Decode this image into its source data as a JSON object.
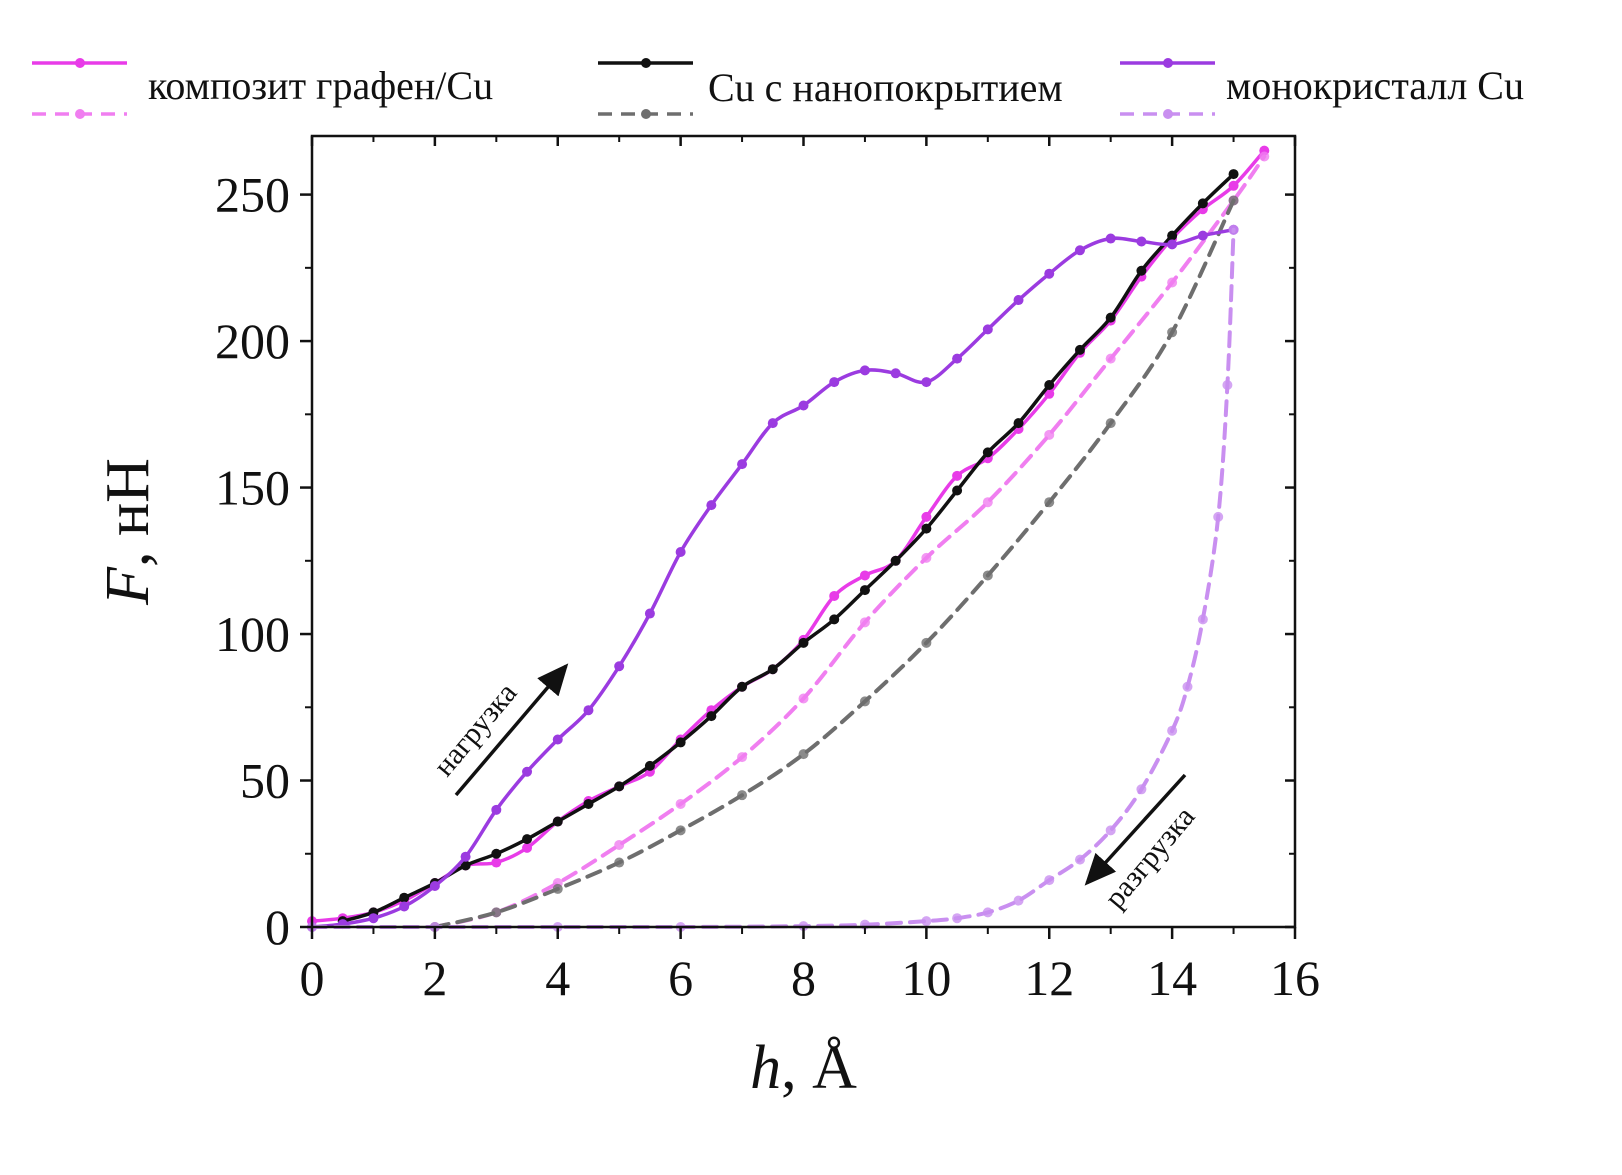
{
  "chart_data": {
    "type": "line",
    "xlabel": {
      "var": "h",
      "rest": ", Å"
    },
    "ylabel": {
      "var": "F",
      "rest": ", нН"
    },
    "xlim": [
      0,
      16
    ],
    "ylim": [
      0,
      270
    ],
    "xticks": [
      0,
      2,
      4,
      6,
      8,
      10,
      12,
      14,
      16
    ],
    "yticks": [
      0,
      50,
      100,
      150,
      200,
      250
    ],
    "grid": false,
    "legend_position": "top",
    "legend": [
      {
        "label": "композит графен/Cu",
        "color": "#e83be8"
      },
      {
        "label": "Cu с нанопокрытием",
        "color": "#111111"
      },
      {
        "label": "монокристалл Cu",
        "color": "#9b3be0"
      }
    ],
    "annotations": [
      {
        "text": "нагрузка"
      },
      {
        "text": "разгрузка"
      }
    ],
    "series": [
      {
        "name": "композит графен/Cu",
        "phase": "loading",
        "style": "solid",
        "color": "#e83be8",
        "x": [
          0,
          0.5,
          1,
          1.5,
          2,
          2.5,
          3,
          3.5,
          4,
          4.5,
          5,
          5.5,
          6,
          6.5,
          7,
          7.5,
          8,
          8.5,
          9,
          9.5,
          10,
          10.5,
          11,
          11.5,
          12,
          12.5,
          13,
          13.5,
          14,
          14.5,
          15,
          15.5
        ],
        "y": [
          2,
          3,
          5,
          9,
          15,
          21,
          22,
          27,
          36,
          43,
          48,
          53,
          64,
          74,
          82,
          88,
          98,
          113,
          120,
          125,
          140,
          154,
          160,
          170,
          182,
          196,
          207,
          222,
          235,
          245,
          253,
          265
        ]
      },
      {
        "name": "композит графен/Cu",
        "phase": "unloading",
        "style": "dashed",
        "color": "#f07ef0",
        "x": [
          2,
          3,
          4,
          5,
          6,
          7,
          8,
          9,
          10,
          11,
          12,
          13,
          14,
          15,
          15.5
        ],
        "y": [
          0,
          5,
          15,
          28,
          42,
          58,
          78,
          104,
          126,
          145,
          168,
          194,
          220,
          248,
          263
        ]
      },
      {
        "name": "Cu с нанопокрытием",
        "phase": "loading",
        "style": "solid",
        "color": "#111111",
        "x": [
          0.5,
          1,
          1.5,
          2,
          2.5,
          3,
          3.5,
          4,
          4.5,
          5,
          5.5,
          6,
          6.5,
          7,
          7.5,
          8,
          8.5,
          9,
          9.5,
          10,
          10.5,
          11,
          11.5,
          12,
          12.5,
          13,
          13.5,
          14,
          14.5,
          15
        ],
        "y": [
          2,
          5,
          10,
          15,
          21,
          25,
          30,
          36,
          42,
          48,
          55,
          63,
          72,
          82,
          88,
          97,
          105,
          115,
          125,
          136,
          149,
          162,
          172,
          185,
          197,
          208,
          224,
          236,
          247,
          257
        ]
      },
      {
        "name": "Cu с нанопокрытием",
        "phase": "unloading",
        "style": "dashed",
        "color": "#6e6e6e",
        "x": [
          2,
          3,
          4,
          5,
          6,
          7,
          8,
          9,
          10,
          11,
          12,
          13,
          14,
          15
        ],
        "y": [
          0,
          5,
          13,
          22,
          33,
          45,
          59,
          77,
          97,
          120,
          145,
          172,
          203,
          248
        ]
      },
      {
        "name": "монокристалл Cu",
        "phase": "loading",
        "style": "solid",
        "color": "#9b3be0",
        "x": [
          0,
          0.5,
          1,
          1.5,
          2,
          2.5,
          3,
          3.5,
          4,
          4.5,
          5,
          5.5,
          6,
          6.5,
          7,
          7.5,
          8,
          8.5,
          9,
          9.5,
          10,
          10.5,
          11,
          11.5,
          12,
          12.5,
          13,
          13.5,
          14,
          14.5,
          15
        ],
        "y": [
          0,
          1,
          3,
          7,
          14,
          24,
          40,
          53,
          64,
          74,
          89,
          107,
          128,
          144,
          158,
          172,
          178,
          186,
          190,
          189,
          186,
          194,
          204,
          214,
          223,
          231,
          235,
          234,
          233,
          236,
          238
        ]
      },
      {
        "name": "монокристалл Cu",
        "phase": "unloading",
        "style": "dashed",
        "color": "#c98ff0",
        "x": [
          0,
          2,
          4,
          6,
          8,
          9,
          10,
          10.5,
          11,
          11.5,
          12,
          12.5,
          13,
          13.5,
          14,
          14.25,
          14.5,
          14.75,
          14.9,
          15
        ],
        "y": [
          0,
          0,
          0,
          0,
          0.3,
          0.8,
          2,
          3,
          5,
          9,
          16,
          23,
          33,
          47,
          67,
          82,
          105,
          140,
          185,
          238
        ]
      }
    ]
  }
}
